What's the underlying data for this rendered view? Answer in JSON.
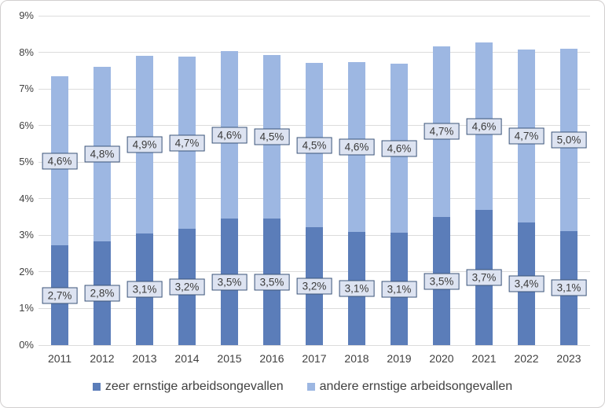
{
  "chart_data": {
    "type": "bar",
    "stacked": true,
    "categories": [
      "2011",
      "2012",
      "2013",
      "2014",
      "2015",
      "2016",
      "2017",
      "2018",
      "2019",
      "2020",
      "2021",
      "2022",
      "2023"
    ],
    "series": [
      {
        "name": "zeer ernstige arbeidsongevallen",
        "color": "#5b7db9",
        "values": [
          2.72,
          2.84,
          3.05,
          3.17,
          3.45,
          3.45,
          3.22,
          3.09,
          3.07,
          3.5,
          3.69,
          3.36,
          3.12
        ],
        "labels": [
          "2,7%",
          "2,8%",
          "3,1%",
          "3,2%",
          "3,5%",
          "3,5%",
          "3,2%",
          "3,1%",
          "3,1%",
          "3,5%",
          "3,7%",
          "3,4%",
          "3,1%"
        ]
      },
      {
        "name": "andere ernstige arbeidsongevallen",
        "color": "#9db7e2",
        "values": [
          4.62,
          4.76,
          4.85,
          4.71,
          4.59,
          4.48,
          4.49,
          4.64,
          4.62,
          4.67,
          4.58,
          4.72,
          4.97
        ],
        "labels": [
          "4,6%",
          "4,8%",
          "4,9%",
          "4,7%",
          "4,6%",
          "4,5%",
          "4,5%",
          "4,6%",
          "4,6%",
          "4,7%",
          "4,6%",
          "4,7%",
          "5,0%"
        ]
      }
    ],
    "y_axis": {
      "min": 0,
      "max": 9,
      "step": 1,
      "tick_labels": [
        "0%",
        "1%",
        "2%",
        "3%",
        "4%",
        "5%",
        "6%",
        "7%",
        "8%",
        "9%"
      ]
    },
    "grid": true,
    "legend_position": "bottom",
    "data_label_style": {
      "background": "#dde3f1",
      "border_color": "#3c5579",
      "text_color": "#3b3b3b"
    },
    "gridline_color": "#dcdcdc"
  }
}
